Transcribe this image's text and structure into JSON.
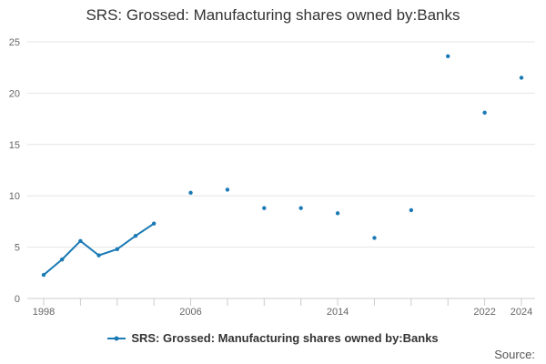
{
  "chart_data": {
    "type": "line",
    "title": "SRS: Grossed: Manufacturing shares owned by:Banks",
    "xlabel": "",
    "ylabel": "",
    "x_ticks": [
      1998,
      2006,
      2014,
      2022,
      2024
    ],
    "y_ticks": [
      0,
      5,
      10,
      15,
      20,
      25
    ],
    "xlim": [
      1998,
      2024
    ],
    "ylim": [
      0,
      25
    ],
    "grid": "horizontal",
    "legend_position": "bottom",
    "series": [
      {
        "name": "SRS: Grossed: Manufacturing shares owned by:Banks",
        "color": "#1a7ab5",
        "connected": [
          {
            "x": 1998,
            "y": 2.3
          },
          {
            "x": 1999,
            "y": 3.8
          },
          {
            "x": 2000,
            "y": 5.6
          },
          {
            "x": 2001,
            "y": 4.2
          },
          {
            "x": 2002,
            "y": 4.8
          },
          {
            "x": 2003,
            "y": 6.1
          },
          {
            "x": 2004,
            "y": 7.3
          }
        ],
        "points": [
          {
            "x": 2006,
            "y": 10.3
          },
          {
            "x": 2008,
            "y": 10.6
          },
          {
            "x": 2010,
            "y": 8.8
          },
          {
            "x": 2012,
            "y": 8.8
          },
          {
            "x": 2014,
            "y": 8.3
          },
          {
            "x": 2016,
            "y": 5.9
          },
          {
            "x": 2018,
            "y": 8.6
          },
          {
            "x": 2020,
            "y": 23.6
          },
          {
            "x": 2022,
            "y": 18.1
          },
          {
            "x": 2024,
            "y": 21.5
          }
        ]
      }
    ]
  },
  "source_label": "Source:"
}
